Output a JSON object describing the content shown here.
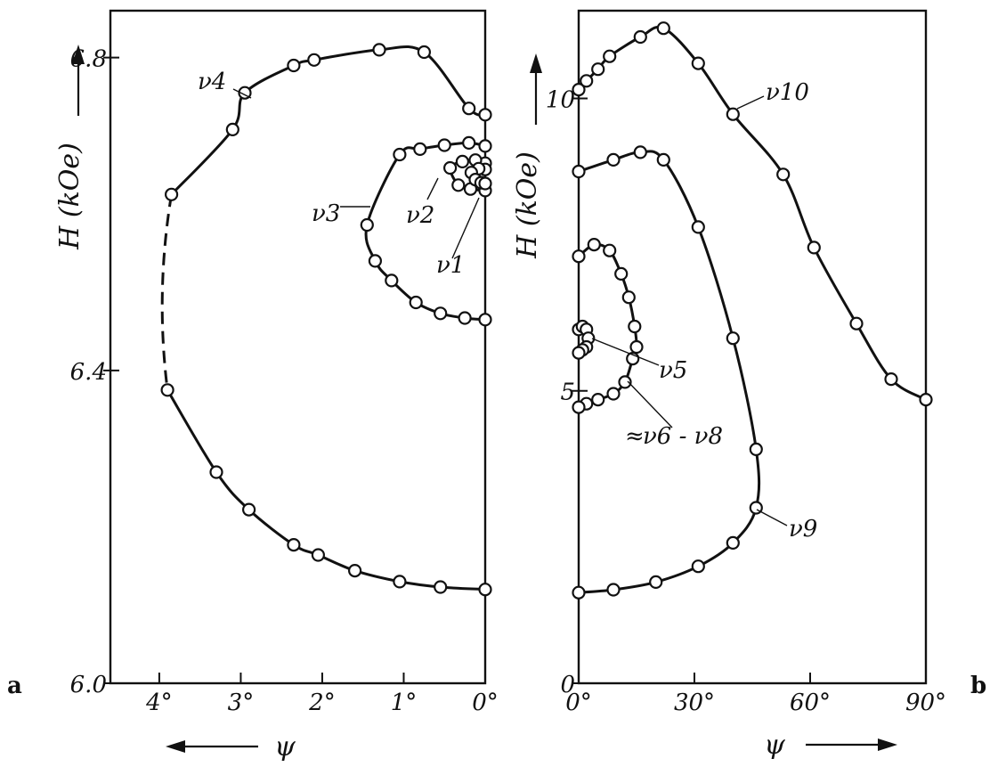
{
  "chart_data": [
    {
      "panel": "a",
      "type": "line",
      "xlabel": "ψ",
      "ylabel": "H (kOe)",
      "x_tick_labels": [
        "4°",
        "3°",
        "2°",
        "1°",
        "0°"
      ],
      "x_ticks": [
        4,
        3,
        2,
        1,
        0
      ],
      "y_tick_labels": [
        "6.0",
        "6.4",
        "6.8"
      ],
      "y_ticks": [
        6.0,
        6.4,
        6.8
      ],
      "xlim": [
        4.6,
        0
      ],
      "ylim": [
        6.0,
        6.86
      ],
      "series": [
        {
          "name": "ν4",
          "points": [
            [
              0.0,
              6.727
            ],
            [
              0.2,
              6.735
            ],
            [
              0.75,
              6.807
            ],
            [
              1.3,
              6.81
            ],
            [
              2.1,
              6.797
            ],
            [
              2.35,
              6.79
            ],
            [
              2.95,
              6.755
            ],
            [
              3.1,
              6.708
            ],
            [
              3.85,
              6.625
            ],
            [
              3.9,
              6.375
            ],
            [
              3.3,
              6.27
            ],
            [
              2.9,
              6.222
            ],
            [
              2.35,
              6.177
            ],
            [
              2.05,
              6.164
            ],
            [
              1.6,
              6.144
            ],
            [
              1.05,
              6.13
            ],
            [
              0.55,
              6.123
            ],
            [
              0.0,
              6.12
            ]
          ],
          "dashed_segment": [
            [
              3.85,
              6.625
            ],
            [
              3.9,
              6.375
            ]
          ]
        },
        {
          "name": "ν3",
          "points": [
            [
              0.0,
              6.687
            ],
            [
              0.2,
              6.691
            ],
            [
              0.5,
              6.688
            ],
            [
              0.8,
              6.683
            ],
            [
              1.05,
              6.676
            ],
            [
              1.45,
              6.586
            ],
            [
              1.35,
              6.54
            ],
            [
              1.15,
              6.515
            ],
            [
              0.85,
              6.487
            ],
            [
              0.55,
              6.473
            ],
            [
              0.25,
              6.467
            ],
            [
              0.0,
              6.465
            ]
          ]
        },
        {
          "name": "ν2",
          "points": [
            [
              0.0,
              6.665
            ],
            [
              0.12,
              6.669
            ],
            [
              0.28,
              6.667
            ],
            [
              0.43,
              6.659
            ],
            [
              0.33,
              6.637
            ],
            [
              0.18,
              6.632
            ],
            [
              0.0,
              6.63
            ]
          ]
        },
        {
          "name": "ν1",
          "points": [
            [
              0.0,
              6.657
            ],
            [
              0.08,
              6.658
            ],
            [
              0.17,
              6.653
            ],
            [
              0.12,
              6.644
            ],
            [
              0.05,
              6.64
            ],
            [
              0.0,
              6.639
            ]
          ]
        }
      ],
      "annotations": [
        "ν4",
        "ν3",
        "ν2",
        "ν1"
      ]
    },
    {
      "panel": "b",
      "type": "line",
      "xlabel": "ψ",
      "ylabel": "H (kOe)",
      "x_tick_labels": [
        "0°",
        "30°",
        "60°",
        "90°"
      ],
      "x_ticks": [
        0,
        30,
        60,
        90
      ],
      "y_tick_labels": [
        "0",
        "5",
        "10"
      ],
      "y_ticks": [
        0,
        5,
        10
      ],
      "xlim": [
        0,
        90
      ],
      "ylim": [
        0,
        11.5
      ],
      "series": [
        {
          "name": "ν10",
          "points": [
            [
              0,
              10.15
            ],
            [
              2,
              10.3
            ],
            [
              5,
              10.5
            ],
            [
              8,
              10.72
            ],
            [
              16,
              11.05
            ],
            [
              22,
              11.2
            ],
            [
              31,
              10.6
            ],
            [
              40,
              9.73
            ],
            [
              53,
              8.7
            ],
            [
              61,
              7.45
            ],
            [
              72,
              6.15
            ],
            [
              81,
              5.2
            ],
            [
              90,
              4.85
            ]
          ]
        },
        {
          "name": "ν9",
          "points": [
            [
              0,
              8.75
            ],
            [
              9,
              8.95
            ],
            [
              16,
              9.08
            ],
            [
              22,
              8.95
            ],
            [
              31,
              7.8
            ],
            [
              40,
              5.9
            ],
            [
              46,
              4.0
            ],
            [
              46,
              3.0
            ],
            [
              40,
              2.4
            ],
            [
              31,
              2.0
            ],
            [
              20,
              1.73
            ],
            [
              9,
              1.6
            ],
            [
              0,
              1.55
            ]
          ]
        },
        {
          "name": "ν6-ν8",
          "points": [
            [
              0,
              7.3
            ],
            [
              4,
              7.5
            ],
            [
              8,
              7.4
            ],
            [
              11,
              7.0
            ],
            [
              13,
              6.6
            ],
            [
              14.5,
              6.1
            ],
            [
              15,
              5.75
            ],
            [
              14,
              5.55
            ],
            [
              12,
              5.15
            ],
            [
              9,
              4.95
            ],
            [
              5,
              4.85
            ],
            [
              2,
              4.78
            ],
            [
              0,
              4.72
            ]
          ]
        },
        {
          "name": "ν5",
          "points": [
            [
              0,
              6.05
            ],
            [
              1,
              6.1
            ],
            [
              2,
              6.05
            ],
            [
              2.5,
              5.9
            ],
            [
              2,
              5.75
            ],
            [
              1,
              5.7
            ],
            [
              0,
              5.65
            ]
          ]
        }
      ],
      "annotations": [
        "ν10",
        "ν9",
        "ν5",
        "≈ ν6 - ν8"
      ]
    }
  ],
  "labels": {
    "panel_a": "a",
    "panel_b": "b",
    "nu4": "ν4",
    "nu3": "ν3",
    "nu2": "ν2",
    "nu1": "ν1",
    "nu10": "ν10",
    "nu9": "ν9",
    "nu5": "ν5",
    "nu6_8_prefix": "≈",
    "nu6_8": "ν6 - ν8"
  }
}
